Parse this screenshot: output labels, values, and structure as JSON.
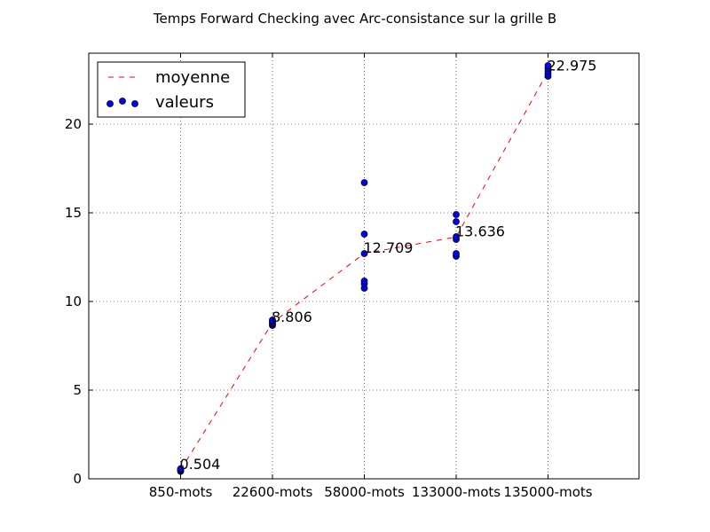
{
  "chart_data": {
    "type": "scatter",
    "title": "Temps Forward Checking avec Arc-consistance sur la grille B",
    "xlabel": "",
    "ylabel": "",
    "categories": [
      "850-mots",
      "22600-mots",
      "58000-mots",
      "133000-mots",
      "135000-mots"
    ],
    "ylim": [
      0,
      24
    ],
    "yticks": [
      0,
      5,
      10,
      15,
      20
    ],
    "grid": true,
    "legend_position": "top-left",
    "series": [
      {
        "name": "moyenne",
        "kind": "line",
        "style": "dashed",
        "color": "#ff0000",
        "values": [
          0.504,
          8.806,
          12.709,
          13.636,
          22.975
        ]
      },
      {
        "name": "valeurs",
        "kind": "scatter",
        "color": "#0000ff",
        "points": [
          {
            "x": "850-mots",
            "y": 0.42
          },
          {
            "x": "850-mots",
            "y": 0.47
          },
          {
            "x": "850-mots",
            "y": 0.5
          },
          {
            "x": "850-mots",
            "y": 0.53
          },
          {
            "x": "850-mots",
            "y": 0.56
          },
          {
            "x": "22600-mots",
            "y": 8.65
          },
          {
            "x": "22600-mots",
            "y": 8.72
          },
          {
            "x": "22600-mots",
            "y": 8.8
          },
          {
            "x": "22600-mots",
            "y": 8.88
          },
          {
            "x": "22600-mots",
            "y": 8.95
          },
          {
            "x": "58000-mots",
            "y": 10.75
          },
          {
            "x": "58000-mots",
            "y": 11.0
          },
          {
            "x": "58000-mots",
            "y": 11.15
          },
          {
            "x": "58000-mots",
            "y": 12.7
          },
          {
            "x": "58000-mots",
            "y": 13.8
          },
          {
            "x": "58000-mots",
            "y": 16.7
          },
          {
            "x": "133000-mots",
            "y": 12.55
          },
          {
            "x": "133000-mots",
            "y": 12.7
          },
          {
            "x": "133000-mots",
            "y": 13.5
          },
          {
            "x": "133000-mots",
            "y": 13.65
          },
          {
            "x": "133000-mots",
            "y": 14.5
          },
          {
            "x": "133000-mots",
            "y": 14.9
          },
          {
            "x": "135000-mots",
            "y": 22.7
          },
          {
            "x": "135000-mots",
            "y": 22.85
          },
          {
            "x": "135000-mots",
            "y": 23.0
          },
          {
            "x": "135000-mots",
            "y": 23.15
          },
          {
            "x": "135000-mots",
            "y": 23.3
          }
        ]
      }
    ],
    "annotations": [
      {
        "x": "850-mots",
        "y": 0.504,
        "text": "0.504"
      },
      {
        "x": "22600-mots",
        "y": 8.806,
        "text": "8.806"
      },
      {
        "x": "58000-mots",
        "y": 12.709,
        "text": "12.709"
      },
      {
        "x": "133000-mots",
        "y": 13.636,
        "text": "13.636"
      },
      {
        "x": "135000-mots",
        "y": 22.975,
        "text": "22.975"
      }
    ]
  }
}
